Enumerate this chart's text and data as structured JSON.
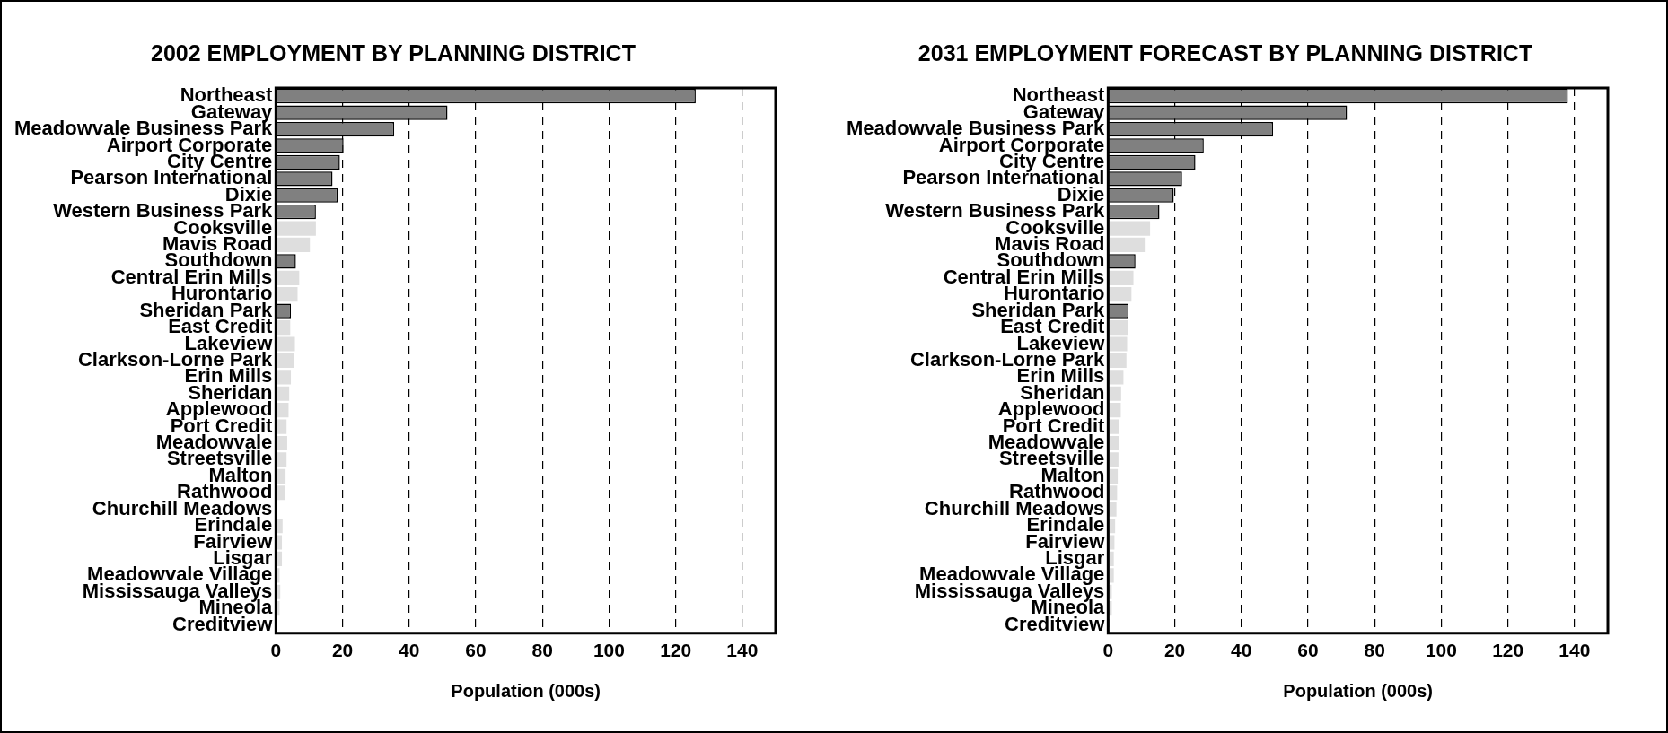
{
  "chart_data": [
    {
      "type": "bar",
      "orientation": "horizontal",
      "title": "2002 EMPLOYMENT BY PLANNING DISTRICT",
      "xlabel": "Population (000s)",
      "categories": [
        "Northeast",
        "Gateway",
        "Meadowvale Business Park",
        "Airport Corporate",
        "City Centre",
        "Pearson International",
        "Dixie",
        "Western Business Park",
        "Cooksville",
        "Mavis Road",
        "Southdown",
        "Central Erin Mills",
        "Hurontario",
        "Sheridan Park",
        "East Credit",
        "Lakeview",
        "Clarkson-Lorne Park",
        "Erin Mills",
        "Sheridan",
        "Applewood",
        "Port Credit",
        "Meadowvale",
        "Streetsville",
        "Malton",
        "Rathwood",
        "Churchill Meadows",
        "Erindale",
        "Fairview",
        "Lisgar",
        "Meadowvale Village",
        "Mississauga Valleys",
        "Mineola",
        "Creditview"
      ],
      "values": [
        126,
        51.5,
        35.5,
        20.3,
        19.2,
        17,
        18.6,
        12,
        12,
        10.2,
        6,
        7,
        6.5,
        4.5,
        4.3,
        5.7,
        5.5,
        4.5,
        4,
        3.8,
        3.2,
        3.4,
        3.2,
        2.9,
        2.8,
        0,
        2,
        1.8,
        1.8,
        1.1,
        1.3,
        1.1,
        null
      ],
      "colors": [
        "#808080",
        "#808080",
        "#808080",
        "#808080",
        "#808080",
        "#808080",
        "#808080",
        "#808080",
        "#dedede",
        "#dedede",
        "#808080",
        "#dedede",
        "#dedede",
        "#808080",
        "#dedede",
        "#dedede",
        "#dedede",
        "#dedede",
        "#dedede",
        "#dedede",
        "#dedede",
        "#dedede",
        "#dedede",
        "#dedede",
        "#dedede",
        "#dedede",
        "#dedede",
        "#dedede",
        "#dedede",
        "#dedede",
        "#dedede",
        "#dedede",
        "#dedede"
      ],
      "xlim": [
        0,
        150
      ],
      "xticks": [
        0,
        20,
        40,
        60,
        80,
        100,
        120,
        140
      ],
      "grid": "x"
    },
    {
      "type": "bar",
      "orientation": "horizontal",
      "title": "2031 EMPLOYMENT FORECAST BY PLANNING DISTRICT",
      "xlabel": "Population (000s)",
      "categories": [
        "Northeast",
        "Gateway",
        "Meadowvale Business Park",
        "Airport Corporate",
        "City Centre",
        "Pearson International",
        "Dixie",
        "Western Business Park",
        "Cooksville",
        "Mavis Road",
        "Southdown",
        "Central Erin Mills",
        "Hurontario",
        "Sheridan Park",
        "East Credit",
        "Lakeview",
        "Clarkson-Lorne Park",
        "Erin Mills",
        "Sheridan",
        "Applewood",
        "Port Credit",
        "Meadowvale",
        "Streetsville",
        "Malton",
        "Rathwood",
        "Churchill Meadows",
        "Erindale",
        "Fairview",
        "Lisgar",
        "Meadowvale Village",
        "Mississauga Valleys",
        "Mineola",
        "Creditview"
      ],
      "values": [
        138,
        71.7,
        49.5,
        28.7,
        26.2,
        22.2,
        19.7,
        15.4,
        12.6,
        11,
        8.2,
        7.6,
        7,
        6.1,
        6,
        5.7,
        5.5,
        4.6,
        3.9,
        3.8,
        3.4,
        3.3,
        3.1,
        2.9,
        2.7,
        2.5,
        2.1,
        1.9,
        1.7,
        1.7,
        1.1,
        1.1,
        0.2
      ],
      "colors": [
        "#808080",
        "#808080",
        "#808080",
        "#808080",
        "#808080",
        "#808080",
        "#808080",
        "#808080",
        "#dedede",
        "#dedede",
        "#808080",
        "#dedede",
        "#dedede",
        "#808080",
        "#dedede",
        "#dedede",
        "#dedede",
        "#dedede",
        "#dedede",
        "#dedede",
        "#dedede",
        "#dedede",
        "#dedede",
        "#dedede",
        "#dedede",
        "#dedede",
        "#dedede",
        "#dedede",
        "#dedede",
        "#dedede",
        "#dedede",
        "#dedede",
        "#dedede"
      ],
      "xlim": [
        0,
        150
      ],
      "xticks": [
        0,
        20,
        40,
        60,
        80,
        100,
        120,
        140
      ],
      "grid": "x"
    }
  ]
}
